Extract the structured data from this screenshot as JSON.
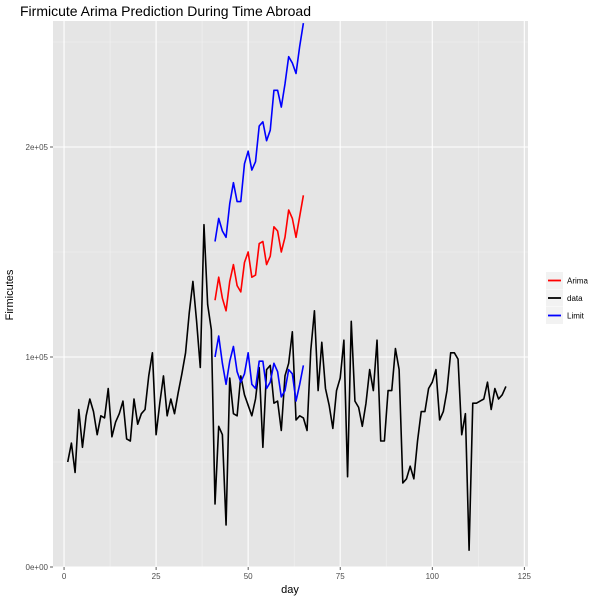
{
  "chart_data": {
    "type": "line",
    "title": "Firmicute Arima Prediction During Time Abroad",
    "xlabel": "day",
    "ylabel": "Firmicutes",
    "xlim": [
      -3,
      126
    ],
    "ylim": [
      0,
      260000
    ],
    "x_ticks": [
      0,
      25,
      50,
      75,
      100,
      125
    ],
    "x_tick_labels": [
      "0",
      "25",
      "50",
      "75",
      "100",
      "125"
    ],
    "y_ticks": [
      0,
      100000,
      200000
    ],
    "y_tick_labels": [
      "0e+00",
      "1e+05",
      "2e+05"
    ],
    "grid": true,
    "legend_position": "right",
    "series": [
      {
        "name": "data",
        "color": "#000000",
        "points": [
          [
            1,
            50000
          ],
          [
            2,
            59000
          ],
          [
            3,
            45000
          ],
          [
            4,
            75000
          ],
          [
            5,
            57000
          ],
          [
            6,
            72000
          ],
          [
            7,
            80000
          ],
          [
            8,
            74000
          ],
          [
            9,
            63000
          ],
          [
            10,
            72000
          ],
          [
            11,
            71000
          ],
          [
            12,
            85000
          ],
          [
            13,
            62000
          ],
          [
            14,
            69000
          ],
          [
            15,
            73000
          ],
          [
            16,
            79000
          ],
          [
            17,
            61000
          ],
          [
            18,
            60000
          ],
          [
            19,
            80000
          ],
          [
            20,
            68000
          ],
          [
            21,
            73000
          ],
          [
            22,
            75000
          ],
          [
            23,
            91000
          ],
          [
            24,
            102000
          ],
          [
            25,
            63000
          ],
          [
            26,
            78000
          ],
          [
            27,
            91000
          ],
          [
            28,
            72000
          ],
          [
            29,
            80000
          ],
          [
            30,
            73000
          ],
          [
            31,
            83000
          ],
          [
            32,
            92000
          ],
          [
            33,
            102000
          ],
          [
            34,
            121000
          ],
          [
            35,
            136000
          ],
          [
            36,
            117000
          ],
          [
            37,
            95000
          ],
          [
            38,
            163000
          ],
          [
            39,
            125000
          ],
          [
            40,
            113000
          ],
          [
            41,
            30000
          ],
          [
            42,
            67000
          ],
          [
            43,
            63000
          ],
          [
            44,
            20000
          ],
          [
            45,
            90000
          ],
          [
            46,
            73000
          ],
          [
            47,
            72000
          ],
          [
            48,
            91000
          ],
          [
            49,
            82000
          ],
          [
            50,
            77000
          ],
          [
            51,
            72000
          ],
          [
            52,
            80000
          ],
          [
            53,
            95000
          ],
          [
            54,
            57000
          ],
          [
            55,
            94000
          ],
          [
            56,
            96000
          ],
          [
            57,
            78000
          ],
          [
            58,
            79000
          ],
          [
            59,
            65000
          ],
          [
            60,
            91000
          ],
          [
            61,
            97000
          ],
          [
            62,
            112000
          ],
          [
            63,
            70000
          ],
          [
            64,
            72000
          ],
          [
            65,
            71000
          ],
          [
            66,
            65000
          ],
          [
            67,
            103000
          ],
          [
            68,
            122000
          ],
          [
            69,
            84000
          ],
          [
            70,
            107000
          ],
          [
            71,
            85000
          ],
          [
            72,
            77000
          ],
          [
            73,
            66000
          ],
          [
            74,
            84000
          ],
          [
            75,
            90000
          ],
          [
            76,
            108000
          ],
          [
            77,
            43000
          ],
          [
            78,
            117000
          ],
          [
            79,
            79000
          ],
          [
            80,
            76000
          ],
          [
            81,
            67000
          ],
          [
            82,
            78000
          ],
          [
            83,
            94000
          ],
          [
            84,
            84000
          ],
          [
            85,
            108000
          ],
          [
            86,
            60000
          ],
          [
            87,
            60000
          ],
          [
            88,
            84000
          ],
          [
            89,
            84000
          ],
          [
            90,
            104000
          ],
          [
            91,
            94000
          ],
          [
            92,
            40000
          ],
          [
            93,
            42000
          ],
          [
            94,
            48000
          ],
          [
            95,
            42000
          ],
          [
            96,
            60000
          ],
          [
            97,
            74000
          ],
          [
            98,
            74000
          ],
          [
            99,
            85000
          ],
          [
            100,
            88000
          ],
          [
            101,
            94000
          ],
          [
            102,
            70000
          ],
          [
            103,
            74000
          ],
          [
            104,
            84000
          ],
          [
            105,
            102000
          ],
          [
            106,
            102000
          ],
          [
            107,
            99000
          ],
          [
            108,
            63000
          ],
          [
            109,
            73000
          ],
          [
            110,
            8000
          ],
          [
            111,
            78000
          ],
          [
            112,
            78000
          ],
          [
            113,
            79000
          ],
          [
            114,
            80000
          ],
          [
            115,
            88000
          ],
          [
            116,
            75000
          ],
          [
            117,
            85000
          ],
          [
            118,
            80000
          ],
          [
            119,
            82000
          ],
          [
            120,
            86000
          ]
        ]
      },
      {
        "name": "Arima",
        "color": "#ff0000",
        "points": [
          [
            41,
            127000
          ],
          [
            42,
            138000
          ],
          [
            43,
            128000
          ],
          [
            44,
            122000
          ],
          [
            45,
            136000
          ],
          [
            46,
            144000
          ],
          [
            47,
            134000
          ],
          [
            48,
            131000
          ],
          [
            49,
            145000
          ],
          [
            50,
            150000
          ],
          [
            51,
            138000
          ],
          [
            52,
            139000
          ],
          [
            53,
            154000
          ],
          [
            54,
            155000
          ],
          [
            55,
            144000
          ],
          [
            56,
            148000
          ],
          [
            57,
            162000
          ],
          [
            58,
            160000
          ],
          [
            59,
            150000
          ],
          [
            60,
            157000
          ],
          [
            61,
            170000
          ],
          [
            62,
            166000
          ],
          [
            63,
            157000
          ],
          [
            64,
            167000
          ],
          [
            65,
            177000
          ]
        ]
      },
      {
        "name": "Limit",
        "color": "#0000ff",
        "points": [
          [
            41,
            155000
          ],
          [
            42,
            166000
          ],
          [
            43,
            160000
          ],
          [
            44,
            157000
          ],
          [
            45,
            173000
          ],
          [
            46,
            183000
          ],
          [
            47,
            174000
          ],
          [
            48,
            174000
          ],
          [
            49,
            192000
          ],
          [
            50,
            198000
          ],
          [
            51,
            189000
          ],
          [
            52,
            193000
          ],
          [
            53,
            210000
          ],
          [
            54,
            212000
          ],
          [
            55,
            203000
          ],
          [
            56,
            208000
          ],
          [
            57,
            227000
          ],
          [
            58,
            227000
          ],
          [
            59,
            219000
          ],
          [
            60,
            230000
          ],
          [
            61,
            243000
          ],
          [
            62,
            240000
          ],
          [
            63,
            235000
          ],
          [
            64,
            248000
          ],
          [
            65,
            259000
          ]
        ]
      },
      {
        "name": "Limit",
        "color": "#0000ff",
        "points": [
          [
            41,
            100000
          ],
          [
            42,
            110000
          ],
          [
            43,
            97000
          ],
          [
            44,
            87000
          ],
          [
            45,
            98000
          ],
          [
            46,
            105000
          ],
          [
            47,
            93000
          ],
          [
            48,
            88000
          ],
          [
            49,
            92000
          ],
          [
            50,
            102000
          ],
          [
            51,
            87000
          ],
          [
            52,
            85000
          ],
          [
            53,
            98000
          ],
          [
            54,
            98000
          ],
          [
            55,
            85000
          ],
          [
            56,
            88000
          ],
          [
            57,
            97000
          ],
          [
            58,
            93000
          ],
          [
            59,
            81000
          ],
          [
            60,
            84000
          ],
          [
            61,
            94000
          ],
          [
            62,
            92000
          ],
          [
            63,
            79000
          ],
          [
            64,
            87000
          ],
          [
            65,
            96000
          ]
        ]
      }
    ],
    "legend": [
      {
        "label": "Arima",
        "color": "#ff0000"
      },
      {
        "label": "data",
        "color": "#000000"
      },
      {
        "label": "Limit",
        "color": "#0000ff"
      }
    ]
  }
}
